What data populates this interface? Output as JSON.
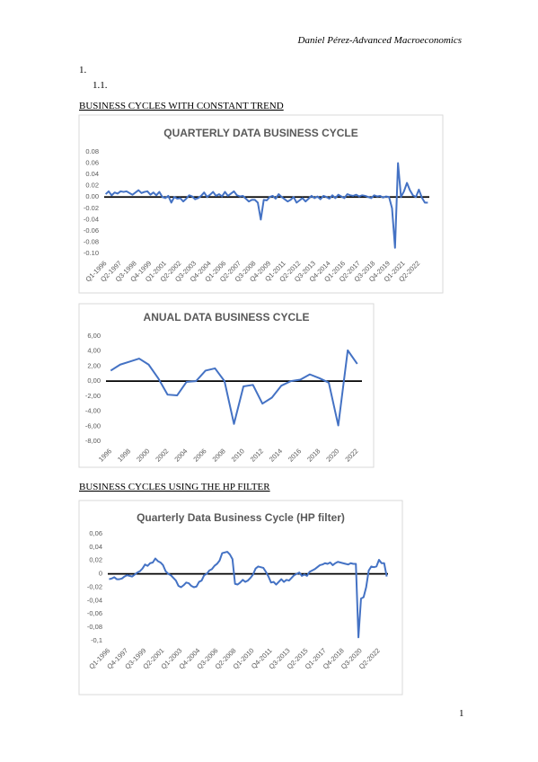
{
  "header": "Daniel Pérez-Advanced Macroeconomics",
  "numbering": [
    "1.",
    "1.1."
  ],
  "sections": [
    {
      "heading": "BUSINESS CYCLES WITH CONSTANT TREND"
    },
    {
      "heading": "BUSINESS CYCLES USING THE HP FILTER"
    }
  ],
  "page_number": "1",
  "chart_data": [
    {
      "type": "line",
      "title": "QUARTERLY DATA BUSINESS CYCLE",
      "color": "#4472c4",
      "categories": [
        "Q1-1996",
        null,
        null,
        null,
        null,
        "Q2-1997",
        null,
        null,
        null,
        null,
        "Q3-1998",
        null,
        null,
        null,
        null,
        "Q4-1999",
        null,
        null,
        null,
        null,
        "Q1-2001",
        null,
        null,
        null,
        null,
        "Q2-2002",
        null,
        null,
        null,
        null,
        "Q3-2003",
        null,
        null,
        null,
        null,
        "Q4-2004",
        null,
        null,
        null,
        null,
        "Q1-2006",
        null,
        null,
        null,
        null,
        "Q2-2007",
        null,
        null,
        null,
        null,
        "Q3-2008",
        null,
        null,
        null,
        null,
        "Q4-2009",
        null,
        null,
        null,
        null,
        "Q1-2011",
        null,
        null,
        null,
        null,
        "Q2-2012",
        null,
        null,
        null,
        null,
        "Q3-2013",
        null,
        null,
        null,
        null,
        "Q4-2014",
        null,
        null,
        null,
        null,
        "Q1-2016",
        null,
        null,
        null,
        null,
        "Q2-2017",
        null,
        null,
        null,
        null,
        "Q3-2018",
        null,
        null,
        null,
        null,
        "Q4-2019",
        null,
        null,
        null,
        null,
        "Q1-2021",
        null,
        null,
        null,
        null,
        "Q2-2022",
        null,
        null,
        null
      ],
      "values": [
        0.005,
        0.01,
        0.003,
        0.008,
        0.006,
        0.01,
        0.009,
        0.01,
        0.007,
        0.004,
        0.008,
        0.012,
        0.007,
        0.009,
        0.01,
        0.004,
        0.008,
        0.003,
        0.009,
        0.0,
        -0.002,
        0.002,
        -0.01,
        0.0,
        -0.003,
        -0.002,
        -0.008,
        -0.003,
        0.003,
        0.001,
        -0.004,
        -0.002,
        0.002,
        0.008,
        0.0,
        0.004,
        0.009,
        0.002,
        0.005,
        0.001,
        0.009,
        0.002,
        0.006,
        0.01,
        0.003,
        0.001,
        0.002,
        -0.003,
        -0.008,
        -0.005,
        -0.005,
        -0.01,
        -0.04,
        -0.005,
        -0.006,
        0.0,
        0.002,
        -0.003,
        0.005,
        0.0,
        -0.004,
        -0.008,
        -0.005,
        0.0,
        -0.01,
        -0.006,
        -0.002,
        -0.008,
        -0.003,
        0.002,
        -0.002,
        0.001,
        -0.004,
        0.002,
        0.0,
        -0.003,
        0.003,
        -0.002,
        0.004,
        0.001,
        -0.002,
        0.005,
        0.003,
        0.002,
        0.004,
        0.001,
        0.003,
        0.002,
        0.0,
        -0.002,
        0.003,
        0.001,
        0.002,
        -0.001,
        0.001,
        0.0,
        -0.02,
        -0.09,
        0.06,
        0.0,
        0.01,
        0.025,
        0.012,
        0.003,
        0.0,
        0.013,
        -0.001,
        -0.01,
        -0.01
      ],
      "ylim": [
        -0.1,
        0.08
      ],
      "yticks": [
        0.08,
        0.06,
        0.04,
        0.02,
        {
          "value": 0,
          "label": "0.00"
        },
        -0.02,
        -0.04,
        -0.06,
        -0.08,
        {
          "value": -0.1,
          "label": "-0.10"
        }
      ]
    },
    {
      "type": "line",
      "title": "ANUAL DATA BUSINESS CYCLE",
      "color": "#4472c4",
      "categories": [
        "1996",
        null,
        "1998",
        null,
        "2000",
        null,
        "2002",
        null,
        "2004",
        null,
        "2006",
        null,
        "2008",
        null,
        "2010",
        null,
        "2012",
        null,
        "2014",
        null,
        "2016",
        null,
        "2018",
        null,
        "2020",
        null,
        "2022"
      ],
      "values": [
        1.4,
        2.2,
        2.6,
        3.0,
        2.2,
        0.4,
        -1.8,
        -1.9,
        -0.1,
        0.0,
        1.4,
        1.7,
        0.0,
        -5.7,
        -0.7,
        -0.5,
        -3.0,
        -2.2,
        -0.6,
        0.0,
        0.2,
        0.9,
        0.4,
        -0.2,
        -5.9,
        4.1,
        2.3
      ],
      "ylim": [
        -8,
        6
      ],
      "yticks": [
        {
          "value": 6,
          "label": "6,00"
        },
        {
          "value": 4,
          "label": "4,00"
        },
        {
          "value": 2,
          "label": "2,00"
        },
        {
          "value": 0,
          "label": "0,00"
        },
        {
          "value": -2,
          "label": "-2,00"
        },
        {
          "value": -4,
          "label": "-4,00"
        },
        {
          "value": -6,
          "label": "-6,00"
        },
        {
          "value": -8,
          "label": "-8,00"
        }
      ]
    },
    {
      "type": "line",
      "title": "Quarterly Data Business Cycle (HP filter)",
      "color": "#4472c4",
      "categories": [
        "Q1-1996",
        null,
        null,
        null,
        null,
        null,
        null,
        "Q4-1997",
        null,
        null,
        null,
        null,
        null,
        null,
        "Q3-1999",
        null,
        null,
        null,
        null,
        null,
        null,
        "Q2-2001",
        null,
        null,
        null,
        null,
        null,
        null,
        "Q1-2003",
        null,
        null,
        null,
        null,
        null,
        null,
        "Q4-2004",
        null,
        null,
        null,
        null,
        null,
        null,
        "Q3-2006",
        null,
        null,
        null,
        null,
        null,
        null,
        "Q2-2008",
        null,
        null,
        null,
        null,
        null,
        null,
        "Q1-2010",
        null,
        null,
        null,
        null,
        null,
        null,
        "Q4-2011",
        null,
        null,
        null,
        null,
        null,
        null,
        "Q3-2013",
        null,
        null,
        null,
        null,
        null,
        null,
        "Q2-2015",
        null,
        null,
        null,
        null,
        null,
        null,
        "Q1-2017",
        null,
        null,
        null,
        null,
        null,
        null,
        "Q4-2018",
        null,
        null,
        null,
        null,
        null,
        null,
        "Q3-2020",
        null,
        null,
        null,
        null,
        null,
        null,
        "Q2-2022",
        null,
        null,
        null
      ],
      "values": [
        -0.008,
        -0.007,
        -0.005,
        -0.008,
        -0.008,
        -0.007,
        -0.004,
        -0.002,
        -0.003,
        -0.004,
        -0.001,
        0.002,
        0.004,
        0.008,
        0.014,
        0.012,
        0.016,
        0.017,
        0.023,
        0.019,
        0.017,
        0.013,
        0.004,
        0.0,
        -0.002,
        -0.006,
        -0.01,
        -0.018,
        -0.02,
        -0.017,
        -0.013,
        -0.014,
        -0.018,
        -0.02,
        -0.019,
        -0.012,
        -0.01,
        -0.002,
        0.0,
        0.005,
        0.007,
        0.012,
        0.015,
        0.02,
        0.031,
        0.032,
        0.033,
        0.029,
        0.022,
        -0.015,
        -0.016,
        -0.013,
        -0.009,
        -0.012,
        -0.01,
        -0.006,
        -0.001,
        0.008,
        0.011,
        0.01,
        0.009,
        0.003,
        -0.004,
        -0.013,
        -0.012,
        -0.016,
        -0.012,
        -0.008,
        -0.012,
        -0.009,
        -0.01,
        -0.006,
        -0.002,
        0.0,
        0.002,
        -0.003,
        -0.001,
        -0.003,
        0.003,
        0.005,
        0.007,
        0.01,
        0.013,
        0.014,
        0.016,
        0.015,
        0.017,
        0.013,
        0.016,
        0.018,
        0.017,
        0.016,
        0.015,
        0.014,
        0.016,
        0.015,
        0.015,
        -0.095,
        -0.037,
        -0.035,
        -0.02,
        0.005,
        0.011,
        0.01,
        0.011,
        0.021,
        0.016,
        0.016,
        -0.004
      ],
      "ylim": [
        -0.1,
        0.06
      ],
      "yticks": [
        {
          "value": 0.06,
          "label": "0,06"
        },
        {
          "value": 0.04,
          "label": "0,04"
        },
        {
          "value": 0.02,
          "label": "0,02"
        },
        0,
        {
          "value": -0.02,
          "label": "-0,02"
        },
        {
          "value": -0.04,
          "label": "-0,04"
        },
        {
          "value": -0.06,
          "label": "-0,06"
        },
        {
          "value": -0.08,
          "label": "-0,08"
        },
        {
          "value": -0.1,
          "label": "-0,1"
        }
      ]
    }
  ]
}
